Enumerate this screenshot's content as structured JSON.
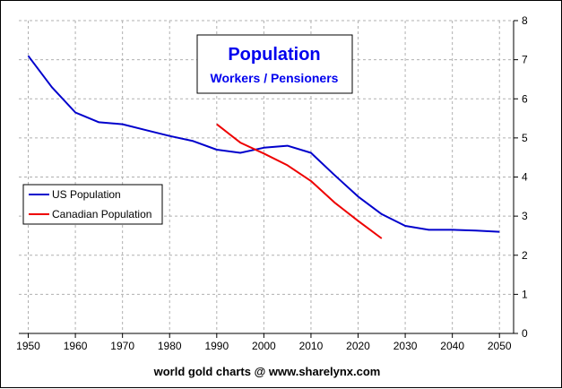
{
  "chart_data": {
    "type": "line",
    "title": "Population",
    "subtitle": "Workers / Pensioners",
    "footer": "world gold charts @ www.sharelynx.com",
    "xlim": [
      1948,
      2053
    ],
    "ylim": [
      0,
      8
    ],
    "x_ticks": [
      1950,
      1960,
      1970,
      1980,
      1990,
      2000,
      2010,
      2020,
      2030,
      2040,
      2050
    ],
    "y_ticks": [
      0,
      1,
      2,
      3,
      4,
      5,
      6,
      7,
      8
    ],
    "y_axis_side": "right",
    "grid": true,
    "legend_position": "left",
    "title_color": "#0000ee",
    "series": [
      {
        "name": "US Population",
        "color": "#0000cc",
        "x": [
          1950,
          1955,
          1960,
          1965,
          1970,
          1975,
          1980,
          1985,
          1990,
          1995,
          2000,
          2005,
          2010,
          2015,
          2020,
          2025,
          2030,
          2035,
          2040,
          2045,
          2050
        ],
        "y": [
          7.1,
          6.3,
          5.65,
          5.4,
          5.35,
          5.2,
          5.05,
          4.92,
          4.7,
          4.62,
          4.75,
          4.8,
          4.62,
          4.05,
          3.5,
          3.05,
          2.75,
          2.65,
          2.65,
          2.63,
          2.6
        ]
      },
      {
        "name": "Canadian Population",
        "color": "#ee0000",
        "x": [
          1990,
          1995,
          2000,
          2005,
          2010,
          2015,
          2020,
          2025
        ],
        "y": [
          5.35,
          4.88,
          4.6,
          4.3,
          3.9,
          3.35,
          2.88,
          2.43
        ]
      }
    ]
  }
}
